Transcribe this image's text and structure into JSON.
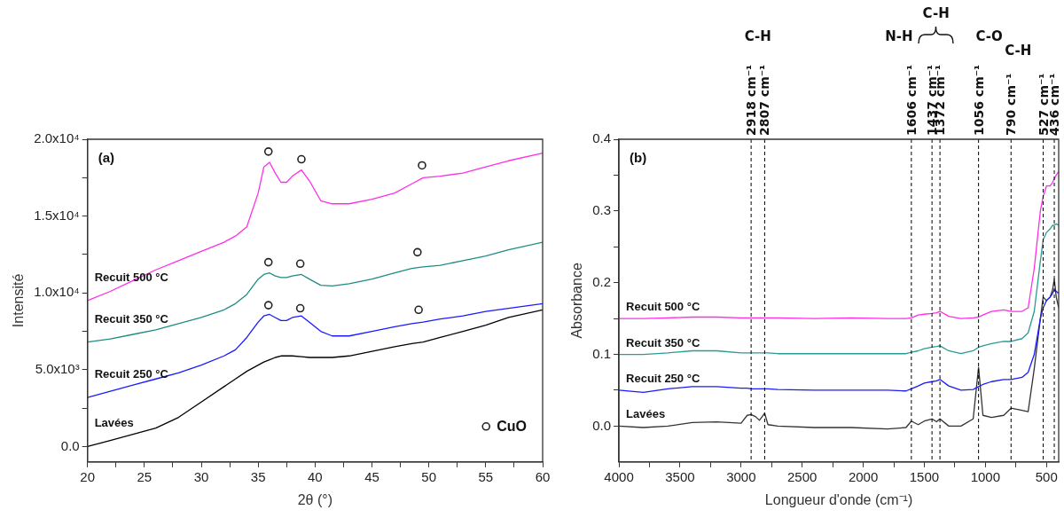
{
  "chart_data": [
    {
      "type": "line",
      "xlabel": "2θ (°)",
      "ylabel": "Intensité",
      "xlim": [
        20,
        60
      ],
      "ylim": [
        -1000,
        20000
      ],
      "xticks": [
        20,
        {
          "value": 22.5,
          "label": null
        },
        25,
        {
          "value": 27.5,
          "label": null
        },
        30,
        {
          "value": 32.5,
          "label": null
        },
        35,
        {
          "value": 37.5,
          "label": null
        },
        40,
        {
          "value": 42.5,
          "label": null
        },
        45,
        {
          "value": 47.5,
          "label": null
        },
        50,
        {
          "value": 52.5,
          "label": null
        },
        55,
        {
          "value": 57.5,
          "label": null
        },
        60
      ],
      "yticks": [
        {
          "value": 0,
          "label": "0.0"
        },
        {
          "value": 2500,
          "label": null
        },
        {
          "value": 5000,
          "label": "5.0x10³"
        },
        {
          "value": 7500,
          "label": null
        },
        {
          "value": 10000,
          "label": "1.0x10⁴"
        },
        {
          "value": 12500,
          "label": null
        },
        {
          "value": 15000,
          "label": "1.5x10⁴"
        },
        {
          "value": 17500,
          "label": null
        },
        {
          "value": 20000,
          "label": "2.0x10⁴"
        }
      ],
      "annotations": [
        "(a)"
      ],
      "legend": "bottom right",
      "grid": false,
      "x": [
        20,
        22,
        24,
        26,
        28,
        30,
        32,
        33,
        34,
        35,
        35.5,
        36,
        36.5,
        37,
        37.5,
        38,
        38.8,
        39.5,
        40.5,
        41.5,
        43,
        45,
        47,
        48.5,
        49.5,
        51,
        53,
        55,
        57,
        60
      ],
      "series": [
        {
          "name": "Recuit 500 °C",
          "color": "#ff2ee6",
          "values": [
            9500,
            10100,
            10800,
            11500,
            12100,
            12700,
            13300,
            13700,
            14300,
            16500,
            18200,
            18500,
            17800,
            17200,
            17200,
            17600,
            18000,
            17300,
            16000,
            15800,
            15800,
            16100,
            16500,
            17100,
            17500,
            17600,
            17800,
            18200,
            18600,
            19100
          ]
        },
        {
          "name": "Recuit 350 °C",
          "color": "#1e8c84",
          "values": [
            6800,
            7000,
            7300,
            7600,
            8000,
            8400,
            8900,
            9300,
            9900,
            10900,
            11200,
            11300,
            11100,
            11000,
            11000,
            11100,
            11200,
            10900,
            10500,
            10450,
            10600,
            10900,
            11300,
            11600,
            11700,
            11800,
            12100,
            12400,
            12800,
            13300
          ]
        },
        {
          "name": "Recuit 250 °C",
          "color": "#1a1aff",
          "values": [
            3200,
            3600,
            4000,
            4400,
            4800,
            5300,
            5900,
            6300,
            7100,
            8100,
            8500,
            8600,
            8400,
            8200,
            8200,
            8400,
            8500,
            8100,
            7500,
            7200,
            7200,
            7500,
            7800,
            8000,
            8100,
            8300,
            8500,
            8800,
            9000,
            9300
          ]
        },
        {
          "name": "Lavées",
          "color": "#000000",
          "values": [
            0,
            400,
            800,
            1200,
            1900,
            2900,
            3900,
            4400,
            4900,
            5300,
            5500,
            5650,
            5800,
            5900,
            5900,
            5900,
            5850,
            5800,
            5800,
            5800,
            5900,
            6200,
            6500,
            6700,
            6800,
            7100,
            7500,
            7900,
            8400,
            8900
          ]
        },
        {
          "name": "CuO",
          "type": "scatter",
          "marker": "circle",
          "color": "#222222",
          "x": [
            35.9,
            38.8,
            49.4,
            35.9,
            38.7,
            49.0,
            35.9,
            38.7,
            49.1
          ],
          "values": [
            19200,
            18700,
            18300,
            12000,
            11900,
            12650,
            9200,
            9000,
            8900
          ]
        }
      ]
    },
    {
      "type": "line",
      "xlabel": "Longueur d'onde (cm⁻¹)",
      "ylabel": "Absorbance",
      "xlim": [
        4000,
        400
      ],
      "ylim": [
        -0.05,
        0.4
      ],
      "xticks": [
        4000,
        {
          "value": 3750,
          "label": null
        },
        3500,
        {
          "value": 3250,
          "label": null
        },
        3000,
        {
          "value": 2750,
          "label": null
        },
        2500,
        {
          "value": 2250,
          "label": null
        },
        2000,
        {
          "value": 1750,
          "label": null
        },
        1500,
        {
          "value": 1250,
          "label": null
        },
        1000,
        {
          "value": 750,
          "label": null
        },
        500
      ],
      "yticks": [
        {
          "value": 0,
          "label": "0.0"
        },
        {
          "value": 0.05,
          "label": null
        },
        0.1,
        {
          "value": 0.15,
          "label": null
        },
        0.2,
        {
          "value": 0.25,
          "label": null
        },
        0.3,
        {
          "value": 0.35,
          "label": null
        },
        0.4
      ],
      "annotations": [
        "(b)",
        "C-H",
        "N-H",
        "C-H",
        "C-O",
        "C-H"
      ],
      "grid": false,
      "ref_lines": [
        {
          "axis": "x",
          "value": 2918,
          "label": "2918 cm⁻¹",
          "color": "#000000",
          "line_style": "dashed"
        },
        {
          "axis": "x",
          "value": 2807,
          "label": "2807 cm⁻¹",
          "color": "#000000",
          "line_style": "dashed"
        },
        {
          "axis": "x",
          "value": 1606,
          "label": "1606 cm⁻¹",
          "color": "#000000",
          "line_style": "dashed"
        },
        {
          "axis": "x",
          "value": 1437,
          "label": "1437 cm⁻¹",
          "color": "#000000",
          "line_style": "dashed"
        },
        {
          "axis": "x",
          "value": 1372,
          "label": "1372 cm⁻¹",
          "color": "#000000",
          "line_style": "dashed"
        },
        {
          "axis": "x",
          "value": 1056,
          "label": "1056 cm⁻¹",
          "color": "#000000",
          "line_style": "dashed"
        },
        {
          "axis": "x",
          "value": 790,
          "label": "790 cm⁻¹",
          "color": "#000000",
          "line_style": "dashed"
        },
        {
          "axis": "x",
          "value": 527,
          "label": "527 cm⁻¹",
          "color": "#000000",
          "line_style": "dashed"
        },
        {
          "axis": "x",
          "value": 436,
          "label": "436 cm⁻¹",
          "color": "#000000",
          "line_style": "dashed"
        }
      ],
      "x": [
        4000,
        3800,
        3600,
        3400,
        3200,
        3000,
        2950,
        2918,
        2880,
        2850,
        2807,
        2780,
        2700,
        2400,
        2100,
        1800,
        1650,
        1606,
        1550,
        1500,
        1437,
        1400,
        1372,
        1300,
        1200,
        1100,
        1056,
        1020,
        950,
        850,
        790,
        700,
        650,
        600,
        550,
        527,
        500,
        470,
        450,
        436,
        420,
        400
      ],
      "series": [
        {
          "name": "Recuit 500 °C",
          "color": "#ff2ee6",
          "values": [
            0.15,
            0.15,
            0.151,
            0.152,
            0.152,
            0.151,
            0.151,
            0.151,
            0.151,
            0.151,
            0.151,
            0.151,
            0.151,
            0.15,
            0.151,
            0.15,
            0.15,
            0.151,
            0.155,
            0.156,
            0.157,
            0.158,
            0.16,
            0.153,
            0.15,
            0.151,
            0.152,
            0.155,
            0.16,
            0.162,
            0.16,
            0.16,
            0.165,
            0.22,
            0.3,
            0.32,
            0.335,
            0.335,
            0.34,
            0.345,
            0.35,
            0.355
          ]
        },
        {
          "name": "Recuit 350 °C",
          "color": "#2a9a92",
          "values": [
            0.1,
            0.1,
            0.102,
            0.105,
            0.105,
            0.102,
            0.102,
            0.102,
            0.102,
            0.102,
            0.102,
            0.102,
            0.101,
            0.101,
            0.101,
            0.101,
            0.101,
            0.103,
            0.105,
            0.108,
            0.11,
            0.111,
            0.112,
            0.105,
            0.101,
            0.105,
            0.11,
            0.112,
            0.115,
            0.118,
            0.118,
            0.122,
            0.13,
            0.16,
            0.23,
            0.26,
            0.27,
            0.275,
            0.28,
            0.28,
            0.282,
            0.28
          ]
        },
        {
          "name": "Recuit 250 °C",
          "color": "#1a1aff",
          "values": [
            0.05,
            0.047,
            0.052,
            0.055,
            0.055,
            0.053,
            0.053,
            0.052,
            0.052,
            0.052,
            0.052,
            0.052,
            0.051,
            0.05,
            0.05,
            0.05,
            0.049,
            0.052,
            0.056,
            0.06,
            0.062,
            0.063,
            0.065,
            0.056,
            0.05,
            0.051,
            0.055,
            0.058,
            0.062,
            0.065,
            0.065,
            0.068,
            0.075,
            0.1,
            0.15,
            0.165,
            0.175,
            0.18,
            0.185,
            0.19,
            0.188,
            0.185
          ]
        },
        {
          "name": "Lavées",
          "color": "#333333",
          "values": [
            0,
            -0.002,
            0,
            0.005,
            0.006,
            0.004,
            0.015,
            0.016,
            0.013,
            0.008,
            0.018,
            0.002,
            0,
            -0.002,
            -0.002,
            -0.004,
            -0.002,
            0.007,
            0.002,
            0.007,
            0.01,
            0.006,
            0.01,
            0,
            0,
            0.01,
            0.082,
            0.015,
            0.012,
            0.015,
            0.025,
            0.022,
            0.02,
            0.08,
            0.15,
            0.18,
            0.175,
            0.18,
            0.19,
            0.205,
            0.18,
            0.165
          ]
        }
      ]
    }
  ]
}
